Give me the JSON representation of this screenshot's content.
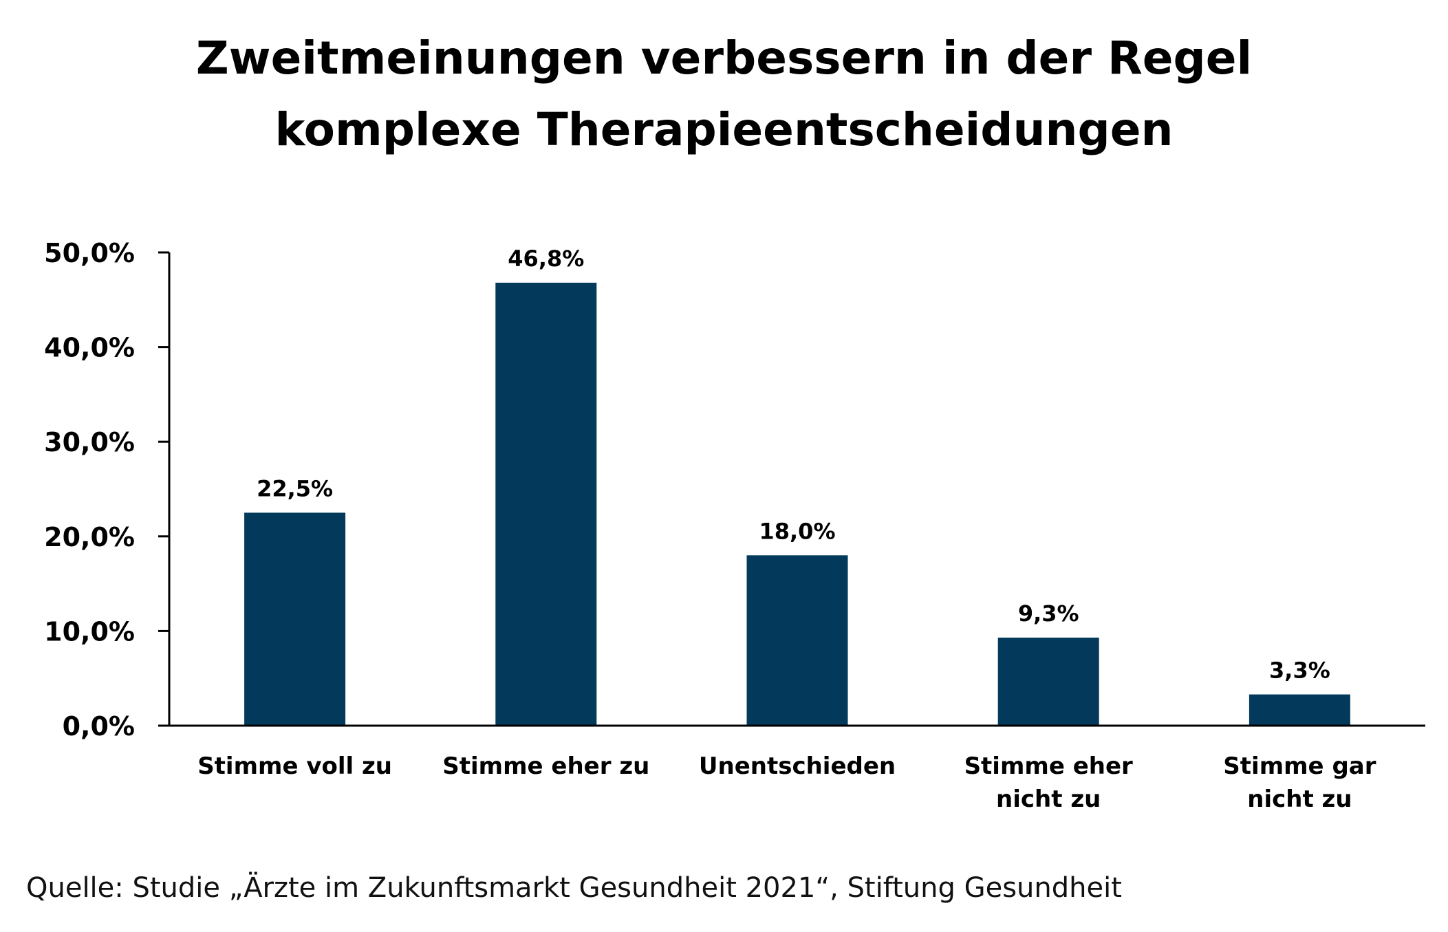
{
  "title_lines": [
    "Zweitmeinungen verbessern in der Regel",
    "komplexe Therapieentscheidungen"
  ],
  "source": "Quelle: Studie „Ärzte im Zukunftsmarkt Gesundheit 2021“, Stiftung Gesundheit",
  "chart_data": {
    "type": "bar",
    "title": "Zweitmeinungen verbessern in der Regel komplexe Therapieentscheidungen",
    "categories": [
      [
        "Stimme voll zu"
      ],
      [
        "Stimme eher zu"
      ],
      [
        "Unentschieden"
      ],
      [
        "Stimme eher",
        "nicht zu"
      ],
      [
        "Stimme gar",
        "nicht zu"
      ]
    ],
    "values": [
      22.5,
      46.8,
      18.0,
      9.3,
      3.3
    ],
    "value_labels": [
      "22,5%",
      "46,8%",
      "18,0%",
      "9,3%",
      "3,3%"
    ],
    "ylim": [
      0,
      50
    ],
    "yticks": [
      0,
      10,
      20,
      30,
      40,
      50
    ],
    "ytick_labels": [
      "0,0%",
      "10,0%",
      "20,0%",
      "30,0%",
      "40,0%",
      "50,0%"
    ],
    "xlabel": "",
    "ylabel": "",
    "grid": false,
    "bar_color": "#033a5c"
  }
}
